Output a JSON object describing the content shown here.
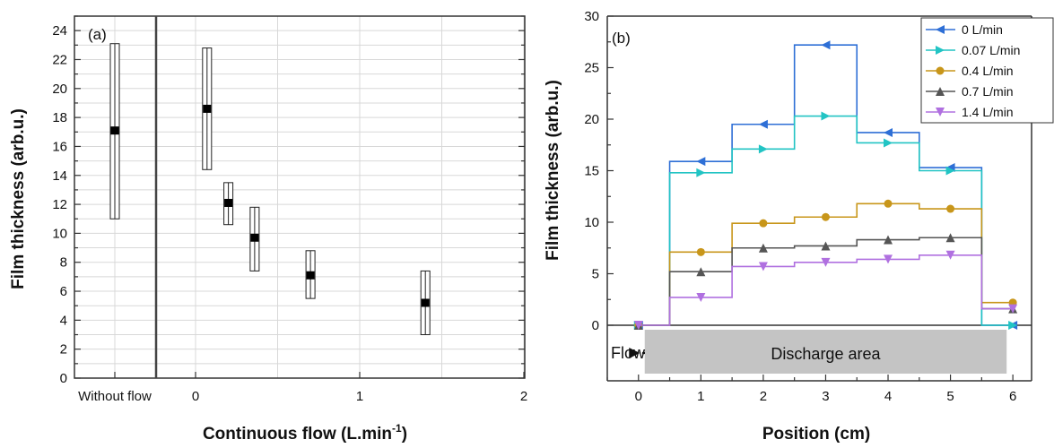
{
  "chart_data": [
    {
      "type": "scatter",
      "panel_label": "(a)",
      "xlabel": "Continuous flow (L.min",
      "xlabel_superscript": "-1",
      "xlabel_close": ")",
      "ylabel": "Film thickness (arb.u.)",
      "ylim": [
        0,
        25
      ],
      "yticks": [
        0,
        2,
        4,
        6,
        8,
        10,
        12,
        14,
        16,
        18,
        20,
        22,
        24
      ],
      "xticks": [
        0,
        1,
        2
      ],
      "without_flow_label": "Without flow",
      "grid": true,
      "reference": {
        "category": "Without flow",
        "y": 17.1,
        "low": 11.0,
        "high": 23.1
      },
      "points": [
        {
          "x": 0.07,
          "y": 18.6,
          "low": 14.4,
          "high": 22.8
        },
        {
          "x": 0.2,
          "y": 12.1,
          "low": 10.6,
          "high": 13.5
        },
        {
          "x": 0.36,
          "y": 9.7,
          "low": 7.4,
          "high": 11.8
        },
        {
          "x": 0.7,
          "y": 7.1,
          "low": 5.5,
          "high": 8.8
        },
        {
          "x": 1.4,
          "y": 5.2,
          "low": 3.0,
          "high": 7.4
        }
      ]
    },
    {
      "type": "line",
      "step": true,
      "panel_label": "(b)",
      "xlabel": "Position (cm)",
      "ylabel": "Film thickness (arb.u.)",
      "xlim": [
        -0.5,
        6.3
      ],
      "ylim": [
        0,
        30
      ],
      "yticks": [
        0,
        5,
        10,
        15,
        20,
        25,
        30
      ],
      "xticks": [
        0,
        1,
        2,
        3,
        4,
        5,
        6
      ],
      "legend_position": "top-right",
      "flow_label": "Flow",
      "area_label": "Discharge area",
      "x": [
        0,
        1,
        2,
        3,
        4,
        5,
        6
      ],
      "series": [
        {
          "name": "0 L/min",
          "marker": "triangle-left",
          "color": "#2e6fd6",
          "values": [
            0,
            15.9,
            19.5,
            27.2,
            18.7,
            15.3,
            0
          ]
        },
        {
          "name": "0.07 L/min",
          "marker": "triangle-right",
          "color": "#22c4c4",
          "values": [
            0,
            14.8,
            17.1,
            20.3,
            17.7,
            15.0,
            0
          ]
        },
        {
          "name": "0.4 L/min",
          "marker": "circle",
          "color": "#c8961a",
          "values": [
            0,
            7.1,
            9.9,
            10.5,
            11.8,
            11.3,
            2.2
          ]
        },
        {
          "name": "0.7 L/min",
          "marker": "triangle-up",
          "color": "#555555",
          "values": [
            0,
            5.2,
            7.5,
            7.7,
            8.3,
            8.5,
            1.6
          ]
        },
        {
          "name": "1.4 L/min",
          "marker": "triangle-down",
          "color": "#b070e0",
          "values": [
            0,
            2.7,
            5.7,
            6.1,
            6.4,
            6.8,
            1.6
          ]
        }
      ]
    }
  ]
}
